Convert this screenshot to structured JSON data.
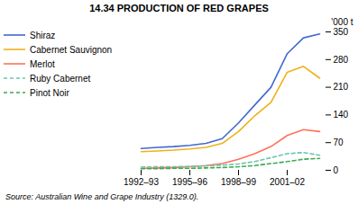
{
  "chart_data": {
    "type": "line",
    "title": "14.34   PRODUCTION OF RED GRAPES",
    "ylabel": "'000 t",
    "source": "Source: Australian Wine and Grape Industry (1329.0).",
    "categories": [
      "1992–93",
      null,
      null,
      "1995–96",
      null,
      null,
      "1998–99",
      null,
      null,
      "2001–02",
      null,
      null
    ],
    "ylim": [
      0,
      350
    ],
    "yticks": [
      0,
      70,
      140,
      210,
      280,
      350
    ],
    "legend": "left",
    "series": [
      {
        "name": "Shiraz",
        "line_style": "solid",
        "values": [
          55,
          58,
          60,
          63,
          68,
          80,
          120,
          165,
          210,
          295,
          335,
          345
        ]
      },
      {
        "name": "Cabernet Sauvignon",
        "line_style": "solid",
        "values": [
          47,
          49,
          51,
          54,
          58,
          68,
          98,
          138,
          172,
          248,
          263,
          233
        ]
      },
      {
        "name": "Merlot",
        "line_style": "solid",
        "values": [
          5,
          6,
          7,
          9,
          12,
          17,
          28,
          42,
          60,
          88,
          103,
          98
        ]
      },
      {
        "name": "Ruby Cabernet",
        "line_style": "dashed",
        "values": [
          8,
          9,
          9,
          10,
          11,
          13,
          16,
          22,
          32,
          42,
          45,
          38
        ]
      },
      {
        "name": "Pinot Noir",
        "line_style": "dashed",
        "values": [
          4,
          4,
          5,
          5,
          6,
          7,
          9,
          12,
          17,
          22,
          28,
          30
        ]
      }
    ]
  }
}
